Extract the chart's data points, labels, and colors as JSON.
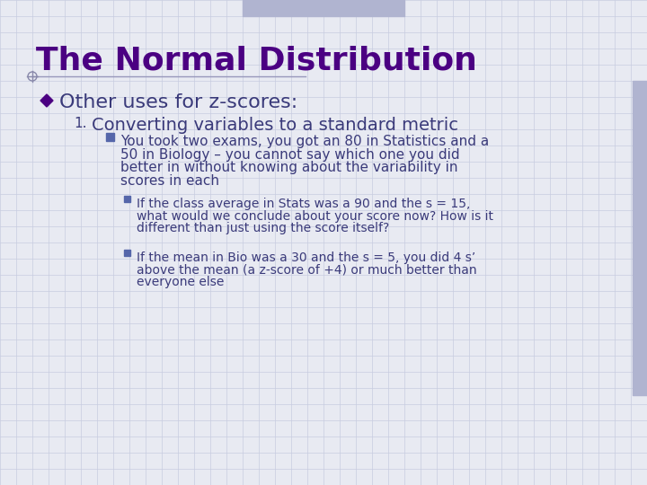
{
  "title": "The Normal Distribution",
  "title_color": "#4B0082",
  "background_color": "#E8EAF2",
  "grid_color": "#C8CCE0",
  "bullet1": "Other uses for z-scores:",
  "bullet1_color": "#3A3A7A",
  "numbered1": "Converting variables to a standard metric",
  "numbered1_color": "#3A3A7A",
  "sub_bullet1_line1": "You took two exams, you got an 80 in Statistics and a",
  "sub_bullet1_line2": "50 in Biology – you cannot say which one you did",
  "sub_bullet1_line3": "better in without knowing about the variability in",
  "sub_bullet1_line4": "scores in each",
  "sub_sub_bullet1_line1": "If the class average in Stats was a 90 and the s = 15,",
  "sub_sub_bullet1_line2": "what would we conclude about your score now? How is it",
  "sub_sub_bullet1_line3": "different than just using the score itself?",
  "sub_sub_bullet2_line1": "If the mean in Bio was a 30 and the s = 5, you did 4 s’",
  "sub_sub_bullet2_line2": "above the mean (a z-score of +4) or much better than",
  "sub_sub_bullet2_line3": "everyone else",
  "text_color": "#3A3A7A",
  "diamond_color": "#4B0082",
  "square_bullet_color": "#5566AA",
  "small_square_color": "#5566AA",
  "accent_top_color": "#B0B4D0",
  "accent_right_color": "#B0B4D0",
  "line_color": "#9898BB",
  "circle_color": "#8888AA"
}
